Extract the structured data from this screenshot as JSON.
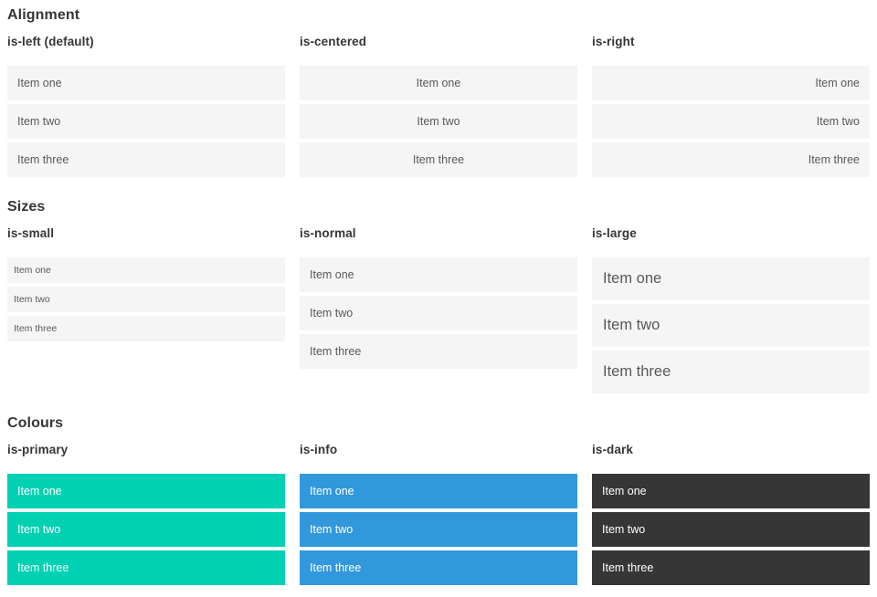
{
  "theme": {
    "page_bg": "#ffffff",
    "heading_color": "#363636",
    "item_bg": "#f5f5f5",
    "item_text": "#595959",
    "primary": "#00d1b2",
    "info": "#3298dc",
    "dark": "#363636",
    "on_color_text": "#ffffff"
  },
  "sections": [
    {
      "title": "Alignment",
      "columns": [
        {
          "subtitle": "is-left (default)",
          "variant": "align-left",
          "items": [
            "Item one",
            "Item two",
            "Item three"
          ]
        },
        {
          "subtitle": "is-centered",
          "variant": "align-center",
          "items": [
            "Item one",
            "Item two",
            "Item three"
          ]
        },
        {
          "subtitle": "is-right",
          "variant": "align-right",
          "items": [
            "Item one",
            "Item two",
            "Item three"
          ]
        }
      ]
    },
    {
      "title": "Sizes",
      "columns": [
        {
          "subtitle": "is-small",
          "variant": "size-small",
          "items": [
            "Item one",
            "Item two",
            "Item three"
          ]
        },
        {
          "subtitle": "is-normal",
          "variant": "size-normal",
          "items": [
            "Item one",
            "Item two",
            "Item three"
          ]
        },
        {
          "subtitle": "is-large",
          "variant": "size-large",
          "items": [
            "Item one",
            "Item two",
            "Item three"
          ]
        }
      ]
    },
    {
      "title": "Colours",
      "columns": [
        {
          "subtitle": "is-primary",
          "variant": "color-primary",
          "items": [
            "Item one",
            "Item two",
            "Item three"
          ]
        },
        {
          "subtitle": "is-info",
          "variant": "color-info",
          "items": [
            "Item one",
            "Item two",
            "Item three"
          ]
        },
        {
          "subtitle": "is-dark",
          "variant": "color-dark",
          "items": [
            "Item one",
            "Item two",
            "Item three"
          ]
        }
      ]
    }
  ]
}
